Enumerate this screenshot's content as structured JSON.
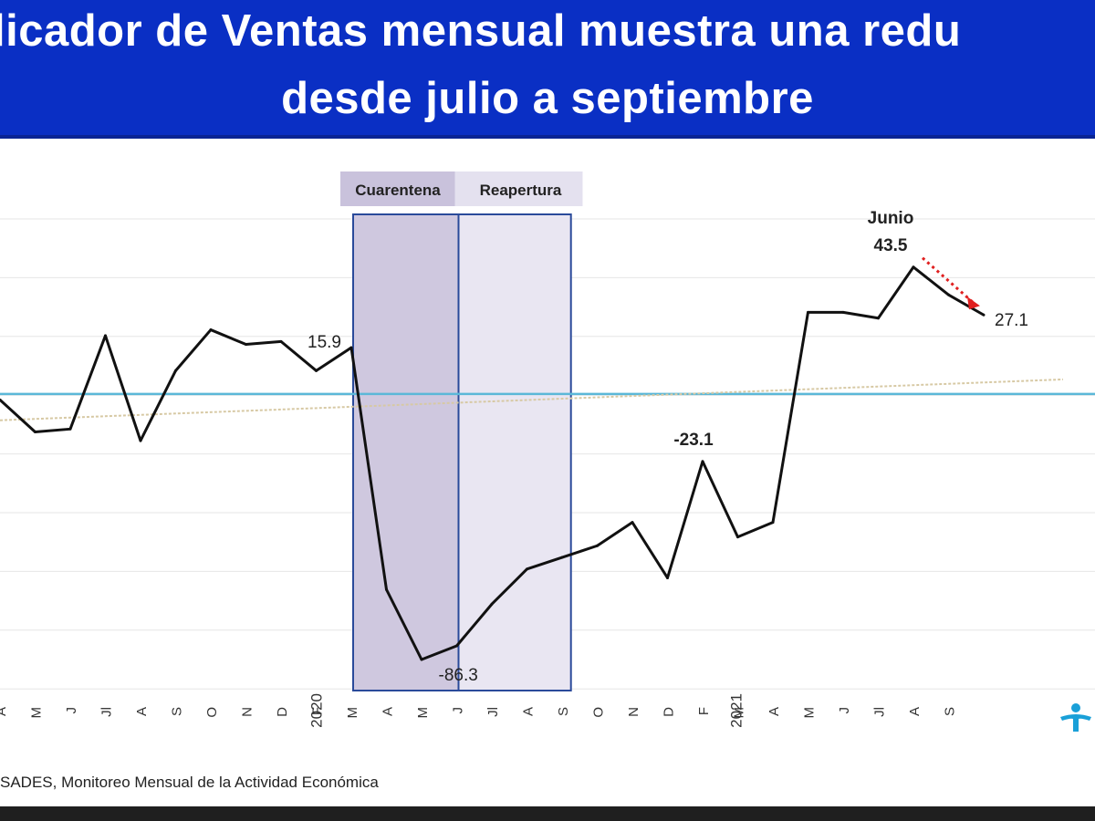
{
  "header": {
    "title_line1": "licador de Ventas mensual muestra una redu",
    "title_line2": "desde julio a septiembre"
  },
  "source": "SADES, Monitoreo Mensual de la Actividad Económica",
  "colors": {
    "banner": "#0a2fc4",
    "line": "#111111",
    "zero_line": "#5bb8d8",
    "trend_line": "#d7c9a4",
    "cuarentena_fill": "#cfc8df",
    "reapertura_fill": "#e9e6f2",
    "band_border": "#2a4a9a",
    "arrow": "#e02020"
  },
  "chart_data": {
    "type": "line",
    "x_tick_labels": [
      "A",
      "M",
      "J",
      "Jl",
      "A",
      "S",
      "O",
      "N",
      "D",
      "F",
      "M",
      "A",
      "M",
      "J",
      "Jl",
      "A",
      "S",
      "O",
      "N",
      "D",
      "F",
      "M",
      "A",
      "M",
      "J",
      "Jl",
      "A",
      "S"
    ],
    "year_labels": [
      "2020",
      "2021"
    ],
    "series": [
      {
        "values": [
          -2,
          -13,
          -12,
          20,
          -16,
          8,
          22,
          17,
          18,
          8,
          15.9,
          -67,
          -91,
          -86.3,
          -72,
          -60,
          -56,
          -52,
          -44,
          -63,
          -23.1,
          -49,
          -44,
          28,
          28,
          26,
          43.5,
          34,
          27.1
        ]
      }
    ],
    "ylim": [
      -101,
      60
    ],
    "annotations": [
      {
        "label": "15.9",
        "point_index": 10
      },
      {
        "label": "-86.3",
        "point_index": 13
      },
      {
        "label": "-23.1",
        "point_index": 20
      },
      {
        "label": "Junio",
        "point_index": 26
      },
      {
        "label": "43.5",
        "point_index": 26
      },
      {
        "label": "27.1",
        "point_index": 28
      }
    ],
    "bands": [
      {
        "label": "Cuarentena",
        "from_index": 10.0,
        "to_index": 13.0
      },
      {
        "label": "Reapertura",
        "from_index": 13.0,
        "to_index": 16.2
      }
    ],
    "zero_line": 0,
    "trend_line": {
      "start": -9,
      "end": 5
    },
    "grid": true
  }
}
